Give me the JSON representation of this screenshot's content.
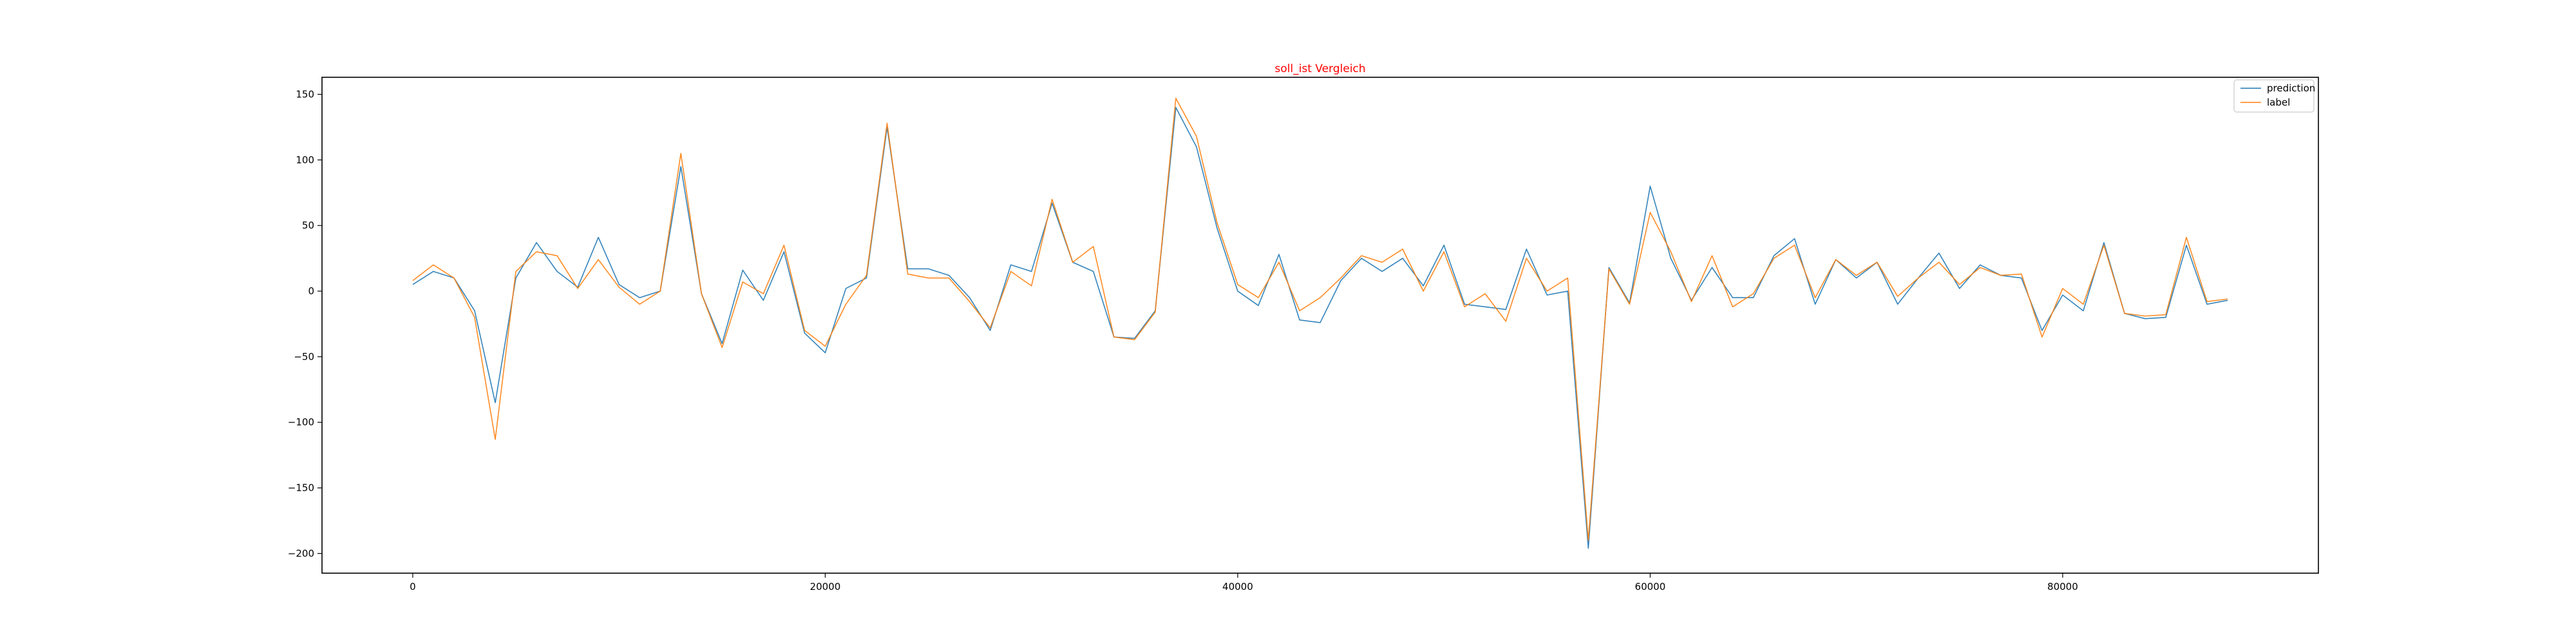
{
  "chart_data": {
    "type": "line",
    "title": "soll_ist Vergleich",
    "title_color": "#ff0000",
    "xlabel": "",
    "ylabel": "",
    "xlim": [
      -4400,
      92400
    ],
    "ylim": [
      -215,
      163
    ],
    "xticks": [
      0,
      20000,
      40000,
      60000,
      80000
    ],
    "xtick_labels": [
      "0",
      "20000",
      "40000",
      "60000",
      "80000"
    ],
    "yticks": [
      150,
      100,
      50,
      0,
      -50,
      -100,
      -150,
      -200
    ],
    "ytick_labels": [
      "150",
      "100",
      "50",
      "0",
      "−50",
      "−100",
      "−150",
      "−200"
    ],
    "grid": false,
    "legend_position": "top-right",
    "x": [
      0,
      1000,
      2000,
      3000,
      4000,
      5000,
      6000,
      7000,
      8000,
      9000,
      10000,
      11000,
      12000,
      13000,
      14000,
      15000,
      16000,
      17000,
      18000,
      19000,
      20000,
      21000,
      22000,
      23000,
      24000,
      25000,
      26000,
      27000,
      28000,
      29000,
      30000,
      31000,
      32000,
      33000,
      34000,
      35000,
      36000,
      37000,
      38000,
      39000,
      40000,
      41000,
      42000,
      43000,
      44000,
      45000,
      46000,
      47000,
      48000,
      49000,
      50000,
      51000,
      52000,
      53000,
      54000,
      55000,
      56000,
      57000,
      58000,
      59000,
      60000,
      61000,
      62000,
      63000,
      64000,
      65000,
      66000,
      67000,
      68000,
      69000,
      70000,
      71000,
      72000,
      73000,
      74000,
      75000,
      76000,
      77000,
      78000,
      79000,
      80000,
      81000,
      82000,
      83000,
      84000,
      85000,
      86000,
      87000,
      88000
    ],
    "series": [
      {
        "name": "prediction",
        "color": "#1f77b4",
        "values": [
          5,
          15,
          10,
          -15,
          -85,
          10,
          37,
          15,
          3,
          41,
          5,
          -5,
          0,
          95,
          -2,
          -40,
          16,
          -7,
          30,
          -32,
          -47,
          2,
          10,
          125,
          17,
          17,
          12,
          -5,
          -30,
          20,
          15,
          67,
          22,
          15,
          -35,
          -36,
          -15,
          140,
          110,
          48,
          0,
          -11,
          28,
          -22,
          -24,
          8,
          25,
          15,
          25,
          4,
          35,
          -10,
          -12,
          -14,
          32,
          -3,
          0,
          -196,
          18,
          -9,
          80,
          25,
          -7,
          18,
          -5,
          -5,
          27,
          40,
          -10,
          24,
          10,
          22,
          -10,
          10,
          29,
          2,
          20,
          12,
          10,
          -30,
          -3,
          -15,
          37,
          -17,
          -21,
          -20,
          35,
          -10,
          -7
        ]
      },
      {
        "name": "label",
        "color": "#ff7f0e",
        "values": [
          8,
          20,
          10,
          -20,
          -113,
          15,
          30,
          27,
          2,
          24,
          3,
          -10,
          0,
          105,
          -2,
          -43,
          7,
          -2,
          35,
          -30,
          -42,
          -10,
          12,
          128,
          13,
          10,
          10,
          -8,
          -28,
          15,
          4,
          70,
          22,
          34,
          -35,
          -37,
          -16,
          147,
          118,
          52,
          5,
          -5,
          22,
          -15,
          -5,
          10,
          27,
          22,
          32,
          0,
          30,
          -12,
          -2,
          -23,
          25,
          0,
          10,
          -190,
          17,
          -10,
          60,
          30,
          -8,
          27,
          -12,
          -2,
          25,
          35,
          -5,
          24,
          12,
          22,
          -4,
          10,
          22,
          5,
          18,
          12,
          13,
          -35,
          2,
          -10,
          35,
          -17,
          -19,
          -18,
          41,
          -8,
          -6
        ]
      }
    ]
  }
}
